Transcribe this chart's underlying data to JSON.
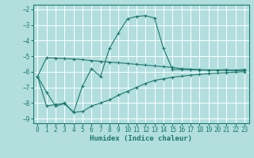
{
  "xlabel": "Humidex (Indice chaleur)",
  "background_color": "#b2dede",
  "grid_color": "#ffffff",
  "line_color": "#1a7a6e",
  "xlim": [
    -0.5,
    23.5
  ],
  "ylim": [
    -9.3,
    -1.7
  ],
  "yticks": [
    -9,
    -8,
    -7,
    -6,
    -5,
    -4,
    -3,
    -2
  ],
  "xticks": [
    0,
    1,
    2,
    3,
    4,
    5,
    6,
    7,
    8,
    9,
    10,
    11,
    12,
    13,
    14,
    15,
    16,
    17,
    18,
    19,
    20,
    21,
    22,
    23
  ],
  "series1_x": [
    0,
    1,
    2,
    3,
    4,
    5,
    6,
    7,
    8,
    9,
    10,
    11,
    12,
    13,
    14,
    15,
    16,
    17,
    18,
    19,
    20,
    21,
    22,
    23
  ],
  "series1_y": [
    -6.3,
    -8.2,
    -8.1,
    -8.0,
    -8.6,
    -6.9,
    -5.8,
    -6.3,
    -4.5,
    -3.5,
    -2.6,
    -2.45,
    -2.4,
    -2.55,
    -4.5,
    -5.85,
    -5.85,
    -5.87,
    -5.88,
    -5.9,
    -5.88,
    -5.87,
    -5.9,
    -5.85
  ],
  "series2_x": [
    0,
    1,
    2,
    3,
    4,
    5,
    6,
    7,
    8,
    9,
    10,
    11,
    12,
    13,
    14,
    15,
    16,
    17,
    18,
    19,
    20,
    21,
    22,
    23
  ],
  "series2_y": [
    -6.3,
    -5.1,
    -5.12,
    -5.15,
    -5.18,
    -5.22,
    -5.28,
    -5.33,
    -5.38,
    -5.42,
    -5.47,
    -5.52,
    -5.57,
    -5.62,
    -5.67,
    -5.72,
    -5.8,
    -5.83,
    -5.86,
    -5.88,
    -5.9,
    -5.9,
    -5.92,
    -5.92
  ],
  "series3_x": [
    0,
    1,
    2,
    3,
    4,
    5,
    6,
    7,
    8,
    9,
    10,
    11,
    12,
    13,
    14,
    15,
    16,
    17,
    18,
    19,
    20,
    21,
    22,
    23
  ],
  "series3_y": [
    -6.3,
    -7.3,
    -8.2,
    -8.05,
    -8.6,
    -8.55,
    -8.2,
    -8.0,
    -7.8,
    -7.5,
    -7.25,
    -7.0,
    -6.75,
    -6.55,
    -6.45,
    -6.35,
    -6.28,
    -6.22,
    -6.17,
    -6.12,
    -6.08,
    -6.05,
    -6.02,
    -6.0
  ]
}
